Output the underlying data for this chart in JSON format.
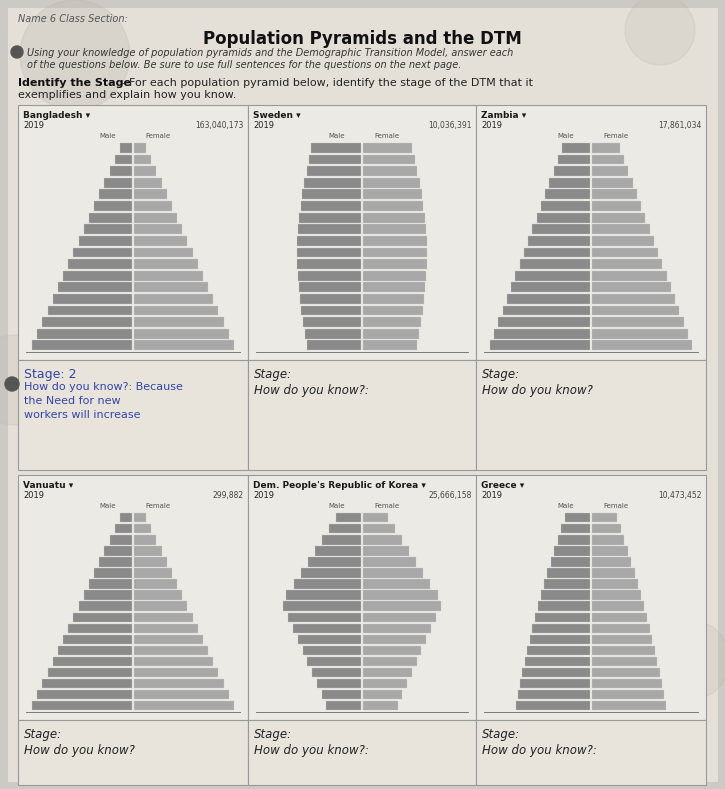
{
  "title": "Population Pyramids and the DTM",
  "header_line": "Name 6 Class Section:",
  "intro_text1": "Using your knowledge of population pyramids and the Demographic Transition Model, answer each",
  "intro_text2": "of the questions below. Be sure to use full sentences for the questions on the next page.",
  "identify_bold": "Identify the Stage",
  "identify_rest": " - For each population pyramid below, identify the stage of the DTM that it",
  "identify_line2": "exemplifies and explain how you know.",
  "bg_color": "#cccac4",
  "paper_color": "#e4e0d8",
  "cell_bg": "#eceae4",
  "answer_bg": "#e8e4dc",
  "grid_color": "#aaaaaa",
  "pyramids": [
    {
      "country": "Bangladesh",
      "year": "2019",
      "pop": "163,040,173",
      "shape": "triangle",
      "row": 0,
      "col": 0
    },
    {
      "country": "Sweden",
      "year": "2019",
      "pop": "10,036,391",
      "shape": "column",
      "row": 0,
      "col": 1
    },
    {
      "country": "Zambia",
      "year": "2019",
      "pop": "17,861,034",
      "shape": "wide_triangle",
      "row": 0,
      "col": 2
    },
    {
      "country": "Vanuatu",
      "year": "2019",
      "pop": "299,882",
      "shape": "triangle",
      "row": 1,
      "col": 0
    },
    {
      "country": "Dem. People's Republic of Korea",
      "year": "2019",
      "pop": "25,666,158",
      "shape": "diamond",
      "row": 1,
      "col": 1
    },
    {
      "country": "Greece",
      "year": "2019",
      "pop": "10,473,452",
      "shape": "inverted",
      "row": 1,
      "col": 2
    }
  ],
  "answers": [
    {
      "stage": "Stage: 2",
      "how": "How do you know?: Because\nthe Need for new\nworkers will increase",
      "student": true,
      "row": 0,
      "col": 0
    },
    {
      "stage": "Stage:",
      "how": "How do you know?:",
      "student": false,
      "row": 0,
      "col": 1
    },
    {
      "stage": "Stage:",
      "how": "How do you know?",
      "student": false,
      "row": 0,
      "col": 2
    },
    {
      "stage": "Stage:",
      "how": "How do you know?",
      "student": false,
      "row": 1,
      "col": 0
    },
    {
      "stage": "Stage:",
      "how": "How do you know?:",
      "student": false,
      "row": 1,
      "col": 1
    },
    {
      "stage": "Stage:",
      "how": "How do you know?:",
      "student": false,
      "row": 1,
      "col": 2
    }
  ]
}
